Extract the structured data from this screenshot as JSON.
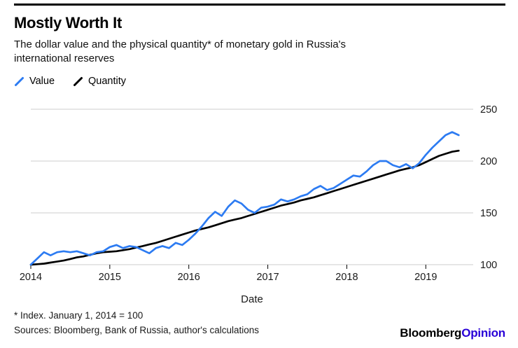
{
  "header": {
    "title": "Mostly Worth It",
    "subtitle": "The dollar value and the physical quantity* of monetary gold in Russia's\ninternational reserves"
  },
  "legend": [
    {
      "label": "Value",
      "color": "#2c7bf2"
    },
    {
      "label": "Quantity",
      "color": "#000000"
    }
  ],
  "chart_data": {
    "type": "line",
    "title": "Mostly Worth It",
    "xlabel": "Date",
    "ylabel": "",
    "x_start": 2014,
    "x_step_months": 1,
    "xlim": [
      2014,
      2019.6
    ],
    "ylim": [
      95,
      257
    ],
    "xticks": [
      2014,
      2015,
      2016,
      2017,
      2018,
      2019
    ],
    "yticks": [
      100,
      150,
      200,
      250
    ],
    "grid": "horizontal",
    "legend_position": "top-left",
    "series": [
      {
        "name": "Value",
        "color": "#2c7bf2",
        "values": [
          100,
          106,
          112,
          109,
          112,
          113,
          112,
          113,
          111,
          109,
          112,
          113,
          117,
          119,
          116,
          118,
          117,
          114,
          111,
          116,
          118,
          116,
          121,
          119,
          124,
          130,
          137,
          145,
          151,
          147,
          156,
          162,
          159,
          153,
          150,
          155,
          156,
          158,
          163,
          161,
          163,
          166,
          168,
          173,
          176,
          172,
          174,
          178,
          182,
          186,
          185,
          190,
          196,
          200,
          200,
          196,
          194,
          197,
          193,
          198,
          206,
          213,
          219,
          225,
          228,
          225
        ]
      },
      {
        "name": "Quantity",
        "color": "#000000",
        "values": [
          100,
          100.5,
          101,
          102,
          103,
          104,
          105.5,
          107,
          108,
          109.5,
          111,
          112,
          112.5,
          113,
          114,
          115,
          116.5,
          118,
          119.5,
          121,
          123,
          125,
          127,
          129,
          131,
          133,
          134.5,
          136,
          138,
          140,
          142,
          143.5,
          145,
          147,
          149,
          151,
          153,
          155,
          157,
          158.5,
          160,
          162,
          163.5,
          165,
          167,
          169,
          171,
          173,
          175,
          177,
          179,
          181,
          183,
          185,
          187,
          189,
          191,
          192.5,
          194,
          196,
          199,
          202,
          205,
          207,
          209,
          210
        ]
      }
    ]
  },
  "footer": {
    "footnote": "* Index. January 1, 2014 = 100",
    "sources": "Sources: Bloomberg, Bank of Russia, author's calculations"
  },
  "branding": {
    "bloomberg": "Bloomberg",
    "opinion": "Opinion",
    "opinion_color": "#2800d7"
  }
}
